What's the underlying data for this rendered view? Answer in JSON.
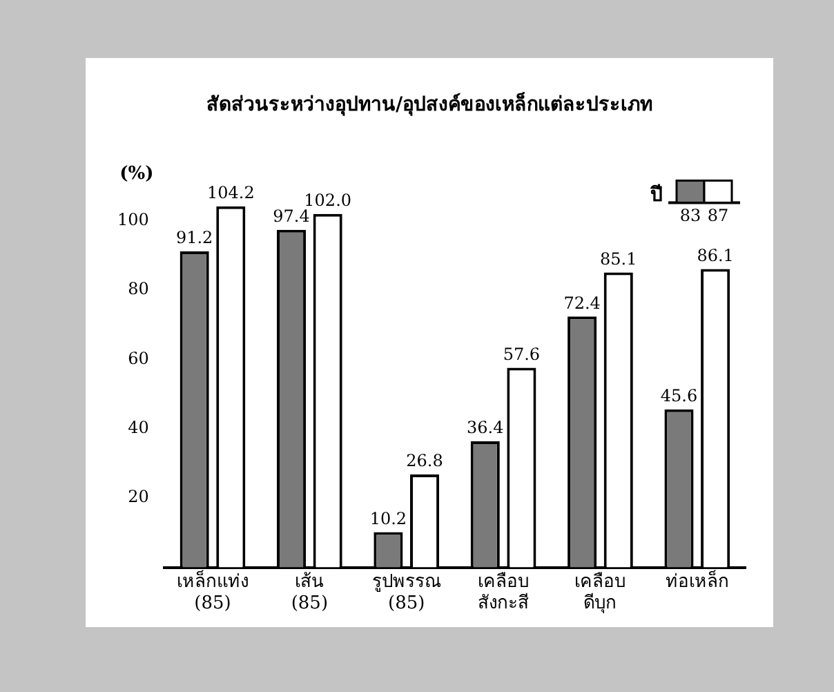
{
  "chart_data": {
    "type": "bar",
    "title": "สัดส่วนระหว่างอุปทาน/อุปสงค์ของเหล็กแต่ละประเภท",
    "ylabel": "(%)",
    "legend_title": "ปี",
    "categories": [
      "เหล็กแท่ง\n(85)",
      "เส้น\n(85)",
      "รูปพรรณ\n(85)",
      "เคลือบ\nสังกะสี",
      "เคลือบ\nดีบุก",
      "ท่อเหล็ก"
    ],
    "series": [
      {
        "name": "83",
        "color": "#7a7a7a",
        "values": [
          91.2,
          97.4,
          10.2,
          36.4,
          72.4,
          45.6
        ],
        "value_labels": [
          "91.2",
          "97.4",
          "10.2",
          "36.4",
          "72.4",
          "45.6"
        ]
      },
      {
        "name": "87",
        "color": "#ffffff",
        "values": [
          104.2,
          102.0,
          26.8,
          57.6,
          85.1,
          86.1
        ],
        "value_labels": [
          "104.2",
          "102.0",
          "26.8",
          "57.6",
          "85.1",
          "86.1"
        ]
      }
    ],
    "ylim": [
      0,
      110
    ],
    "yticks": [
      20,
      40,
      60,
      80,
      100
    ],
    "legend": "top right"
  }
}
